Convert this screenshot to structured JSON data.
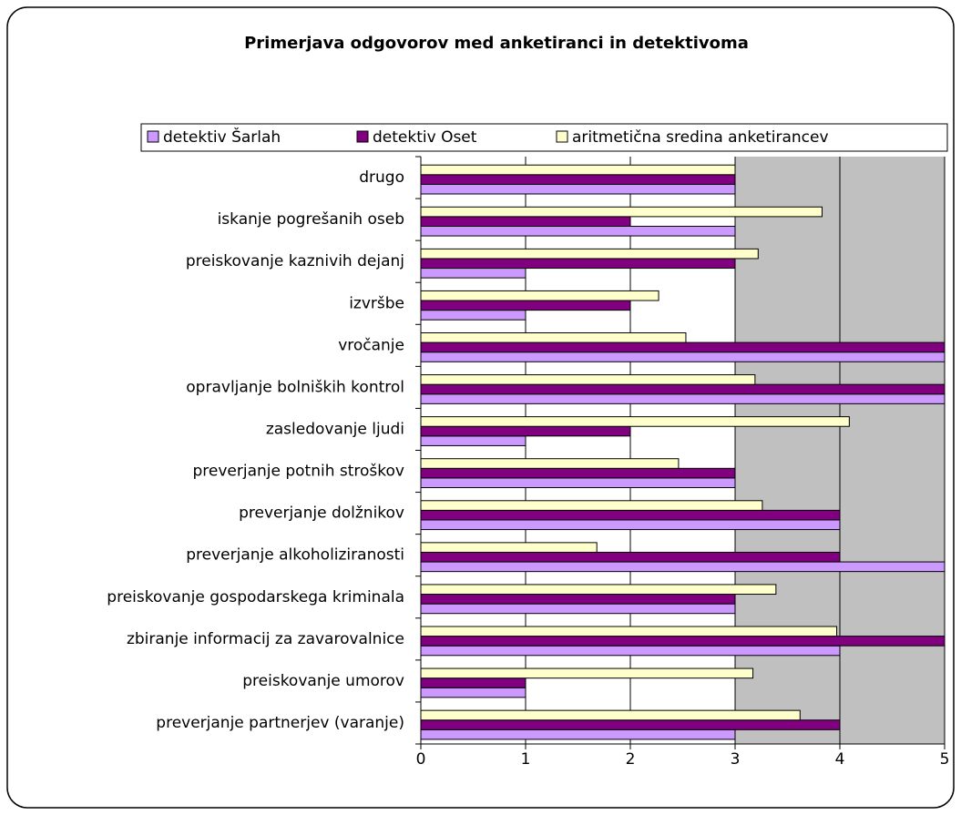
{
  "chart_data": {
    "type": "barh",
    "title": "Primerjava odgovorov med anketiranci in detektivoma",
    "categories": [
      "drugo",
      "iskanje pogrešanih oseb",
      "preiskovanje kaznivih dejanj",
      "izvršbe",
      "vročanje",
      "opravljanje bolniških kontrol",
      "zasledovanje ljudi",
      "preverjanje potnih stroškov",
      "preverjanje dolžnikov",
      "preverjanje alkoholiziranosti",
      "preiskovanje gospodarskega kriminala",
      "zbiranje informacij za zavarovalnice",
      "preiskovanje umorov",
      "preverjanje partnerjev (varanje)"
    ],
    "series": [
      {
        "name": "detektiv Šarlah",
        "color": "#cc99ff",
        "values": [
          3,
          3,
          1,
          1,
          5,
          5,
          1,
          3,
          4,
          5,
          3,
          4,
          1,
          3
        ]
      },
      {
        "name": "detektiv Oset",
        "color": "#800080",
        "values": [
          3,
          2,
          3,
          2,
          5,
          5,
          2,
          3,
          4,
          4,
          3,
          5,
          1,
          4
        ]
      },
      {
        "name": "aritmetična sredina anketirancev",
        "color": "#ffffcc",
        "values": [
          3,
          3.83,
          3.22,
          2.27,
          2.53,
          3.19,
          4.09,
          2.46,
          3.26,
          1.68,
          3.39,
          3.97,
          3.17,
          3.62
        ]
      }
    ],
    "xlim": [
      0,
      5
    ],
    "xticks": [
      0,
      1,
      2,
      3,
      4,
      5
    ],
    "grid": true,
    "legend": "top"
  }
}
